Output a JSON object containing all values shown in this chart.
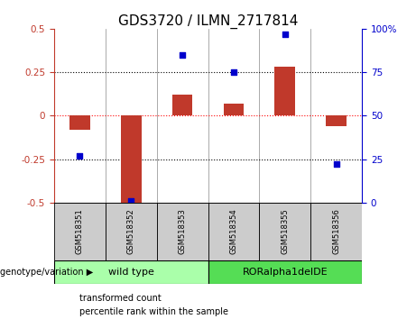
{
  "title": "GDS3720 / ILMN_2717814",
  "samples": [
    "GSM518351",
    "GSM518352",
    "GSM518353",
    "GSM518354",
    "GSM518355",
    "GSM518356"
  ],
  "red_values": [
    -0.08,
    -0.5,
    0.12,
    0.07,
    0.28,
    -0.06
  ],
  "blue_values": [
    27,
    1,
    85,
    75,
    97,
    22
  ],
  "ylim_left": [
    -0.5,
    0.5
  ],
  "ylim_right": [
    0,
    100
  ],
  "yticks_left": [
    -0.5,
    -0.25,
    0,
    0.25,
    0.5
  ],
  "yticks_right": [
    0,
    25,
    50,
    75,
    100
  ],
  "hlines_black": [
    0.25,
    -0.25
  ],
  "hline_red": 0.0,
  "groups": [
    {
      "label": "wild type",
      "indices": [
        0,
        1,
        2
      ],
      "color": "#aaffaa"
    },
    {
      "label": "RORalpha1delDE",
      "indices": [
        3,
        4,
        5
      ],
      "color": "#55dd55"
    }
  ],
  "bar_color": "#C0392B",
  "dot_color": "#0000CC",
  "bar_width": 0.4,
  "dot_size": 25,
  "background_color": "#FFFFFF",
  "genotype_label": "genotype/variation",
  "legend_items": [
    {
      "label": "transformed count",
      "color": "#C0392B"
    },
    {
      "label": "percentile rank within the sample",
      "color": "#0000CC"
    }
  ],
  "title_fontsize": 11,
  "tick_fontsize": 7.5,
  "sample_fontsize": 6,
  "group_fontsize": 8,
  "legend_fontsize": 7
}
